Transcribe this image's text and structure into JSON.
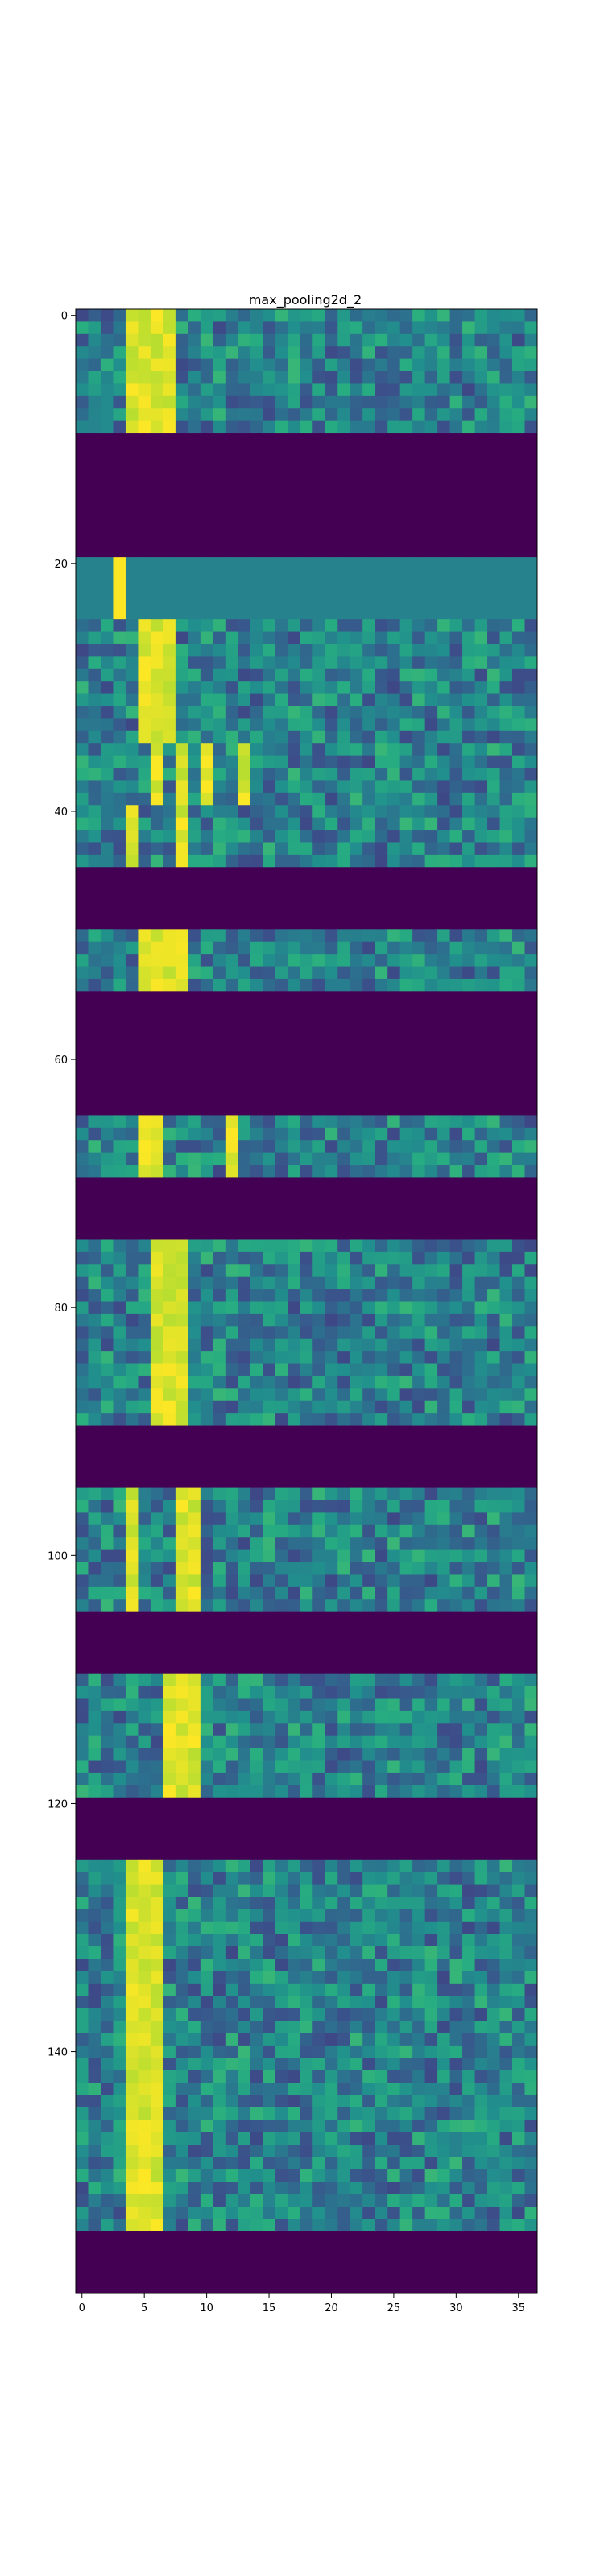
{
  "chart_data": {
    "type": "heatmap",
    "title": "max_pooling2d_2",
    "xlabel": "",
    "ylabel": "",
    "colormap": "viridis",
    "xlim": [
      -0.5,
      36.5
    ],
    "ylim": [
      159.5,
      -0.5
    ],
    "xticks": [
      0,
      5,
      10,
      15,
      20,
      25,
      30,
      35
    ],
    "yticks": [
      0,
      20,
      40,
      60,
      80,
      100,
      120,
      140
    ],
    "n_rows": 160,
    "n_cols": 37,
    "value_range": [
      0,
      1
    ],
    "row_groups": [
      {
        "rows": [
          0,
          9
        ],
        "pattern": "active",
        "bright_cols": [
          4,
          5,
          6,
          7
        ]
      },
      {
        "rows": [
          10,
          19
        ],
        "pattern": "zero"
      },
      {
        "rows": [
          20,
          24
        ],
        "pattern": "uniform",
        "level": 0.45,
        "bright_cols": [
          3
        ]
      },
      {
        "rows": [
          25,
          34
        ],
        "pattern": "active",
        "bright_cols": [
          5,
          6,
          7
        ]
      },
      {
        "rows": [
          35,
          39
        ],
        "pattern": "active",
        "bright_cols": [
          6,
          8,
          10,
          13
        ]
      },
      {
        "rows": [
          40,
          44
        ],
        "pattern": "active",
        "bright_cols": [
          4,
          8
        ]
      },
      {
        "rows": [
          45,
          49
        ],
        "pattern": "zero"
      },
      {
        "rows": [
          50,
          54
        ],
        "pattern": "active",
        "bright_cols": [
          5,
          6,
          7,
          8
        ]
      },
      {
        "rows": [
          55,
          64
        ],
        "pattern": "zero"
      },
      {
        "rows": [
          65,
          69
        ],
        "pattern": "active",
        "bright_cols": [
          5,
          6,
          12
        ]
      },
      {
        "rows": [
          70,
          74
        ],
        "pattern": "zero"
      },
      {
        "rows": [
          75,
          89
        ],
        "pattern": "active",
        "bright_cols": [
          6,
          7,
          8
        ]
      },
      {
        "rows": [
          90,
          94
        ],
        "pattern": "zero"
      },
      {
        "rows": [
          95,
          104
        ],
        "pattern": "active",
        "bright_cols": [
          4,
          8,
          9
        ]
      },
      {
        "rows": [
          105,
          109
        ],
        "pattern": "zero"
      },
      {
        "rows": [
          110,
          119
        ],
        "pattern": "active",
        "bright_cols": [
          7,
          8,
          9
        ]
      },
      {
        "rows": [
          120,
          124
        ],
        "pattern": "zero"
      },
      {
        "rows": [
          125,
          154
        ],
        "pattern": "active",
        "bright_cols": [
          4,
          5,
          6
        ]
      },
      {
        "rows": [
          155,
          159
        ],
        "pattern": "zero"
      }
    ]
  }
}
